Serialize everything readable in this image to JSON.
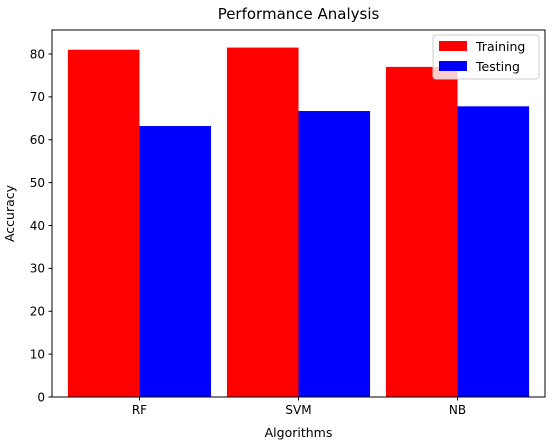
{
  "chart_data": {
    "type": "bar",
    "title": "Performance Analysis",
    "xlabel": "Algorithms",
    "ylabel": "Accuracy",
    "categories": [
      "RF",
      "SVM",
      "NB"
    ],
    "series": [
      {
        "name": "Training",
        "color": "#ff0000",
        "values": [
          81.0,
          81.5,
          77.0
        ]
      },
      {
        "name": "Testing",
        "color": "#0000ff",
        "values": [
          63.2,
          66.7,
          67.8
        ]
      }
    ],
    "ylim": [
      0,
      85.6
    ],
    "yticks": [
      0,
      10,
      20,
      30,
      40,
      50,
      60,
      70,
      80
    ],
    "grid": false,
    "legend_position": "top-right"
  }
}
